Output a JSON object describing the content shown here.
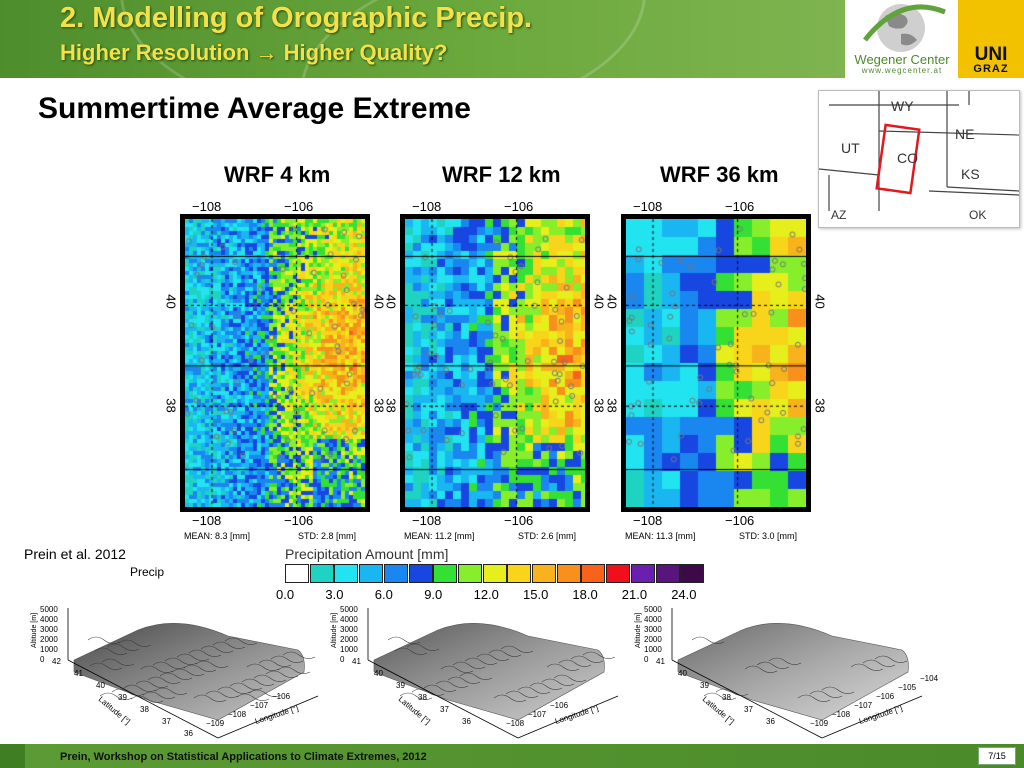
{
  "header": {
    "title": "2. Modelling of Orographic Precip.",
    "subtitle": "Higher Resolution → Higher Quality?",
    "logo_wegener": "Wegener Center",
    "logo_url": "www.wegcenter.at",
    "logo_uni": "UNI",
    "logo_graz": "GRAZ"
  },
  "slide_heading": "Summertime Average Extreme",
  "inset_map": {
    "states": [
      "WY",
      "UT",
      "CO",
      "NE",
      "KS",
      "AZ",
      "OK"
    ],
    "highlight_color": "#e0191f"
  },
  "panels": [
    {
      "title": "WRF 4 km",
      "mean": "MEAN: 8.3 [mm]",
      "std": "STD: 2.8 [mm]"
    },
    {
      "title": "WRF 12 km",
      "mean": "MEAN: 11.2 [mm]",
      "std": "STD: 2.6 [mm]"
    },
    {
      "title": "WRF 36 km",
      "mean": "MEAN: 11.3 [mm]",
      "std": "STD: 3.0 [mm]"
    }
  ],
  "axes": {
    "lon_ticks": [
      "−108",
      "−106"
    ],
    "lat_ticks": [
      "40",
      "38"
    ]
  },
  "citation": "Prein et al. 2012",
  "partial_label": "Precip",
  "colorbar": {
    "title": "Precipitation Amount [mm]",
    "colors": [
      "#ffffff",
      "#1fd3c3",
      "#22e3f0",
      "#19b6f2",
      "#1a86f0",
      "#1747e0",
      "#34e034",
      "#86ee2b",
      "#e6ee1b",
      "#f8d51b",
      "#f8b21b",
      "#f8901b",
      "#f8631b",
      "#f0101b",
      "#6a1fb0",
      "#5a147d",
      "#3c0a48"
    ],
    "labels": [
      "0.0",
      "3.0",
      "6.0",
      "9.0",
      "12.0",
      "15.0",
      "18.0",
      "21.0",
      "24.0"
    ]
  },
  "terrain": {
    "alt_label": "Altitude [m]",
    "alt_ticks": [
      "5000",
      "4000",
      "3000",
      "2000",
      "1000",
      "0"
    ],
    "lat_label": "Latitude [°]",
    "lon_label": "Longitude [°]",
    "plots": [
      {
        "lat_ticks": [
          "42",
          "41",
          "40",
          "39",
          "38",
          "37",
          "36"
        ],
        "lon_ticks": [
          "−109",
          "−108",
          "−107",
          "−106"
        ]
      },
      {
        "lat_ticks": [
          "41",
          "40",
          "39",
          "38",
          "37",
          "36"
        ],
        "lon_ticks": [
          "−108",
          "−107",
          "−106"
        ]
      },
      {
        "lat_ticks": [
          "41",
          "40",
          "39",
          "38",
          "37",
          "36"
        ],
        "lon_ticks": [
          "−109",
          "−108",
          "−107",
          "−106",
          "−105",
          "−104"
        ]
      }
    ]
  },
  "footer": {
    "text": "Prein, Workshop on Statistical Applications to Climate Extremes, 2012",
    "page": "7/15"
  }
}
